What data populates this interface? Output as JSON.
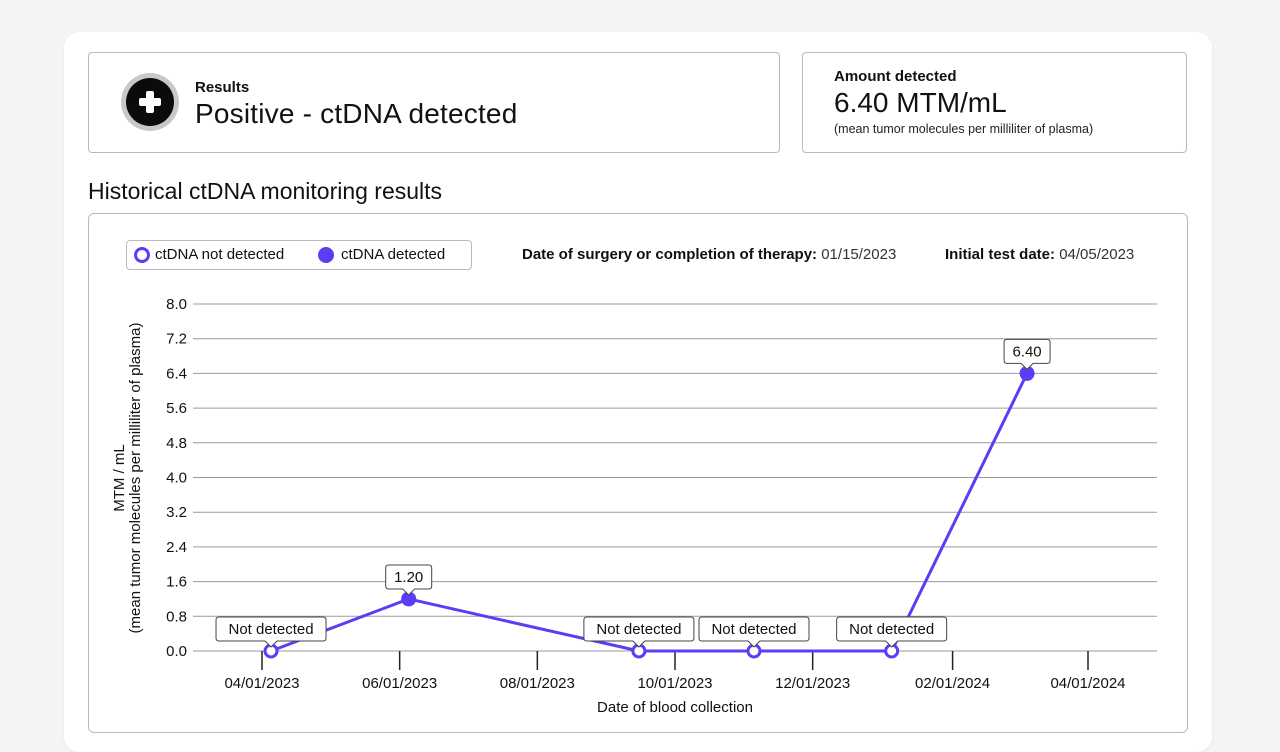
{
  "results": {
    "label": "Results",
    "value": "Positive - ctDNA detected",
    "icon": "plus-circle-icon"
  },
  "amount": {
    "label": "Amount detected",
    "value": "6.40 MTM/mL",
    "description": "(mean tumor molecules per milliliter of plasma)"
  },
  "history": {
    "title": "Historical ctDNA monitoring results"
  },
  "legend": {
    "not_detected": "ctDNA not detected",
    "detected": "ctDNA detected"
  },
  "meta": {
    "surgery_label": "Date of surgery or completion of therapy:",
    "surgery_value": "01/15/2023",
    "initial_label": "Initial test date:",
    "initial_value": "04/05/2023"
  },
  "colors": {
    "accent": "#5b3df5",
    "grid": "#9a9aa0",
    "text": "#111111"
  },
  "chart_data": {
    "type": "line",
    "xlabel": "Date of blood collection",
    "ylabel": "MTM / mL",
    "ylabel_sub": "(mean tumor molecules per milliliter of plasma)",
    "ylim": [
      0,
      8.0
    ],
    "yticks": [
      "8.0",
      "7.2",
      "6.4",
      "5.6",
      "4.8",
      "4.0",
      "3.2",
      "2.4",
      "1.6",
      "0.8",
      "0.0"
    ],
    "xticks": [
      "04/01/2023",
      "06/01/2023",
      "08/01/2023",
      "10/01/2023",
      "12/01/2023",
      "02/01/2024",
      "04/01/2024"
    ],
    "grid": true,
    "legend_position": "top-left",
    "series": [
      {
        "points": [
          {
            "x": "04/05/2023",
            "y": 0.0,
            "detected": false,
            "label": "Not detected"
          },
          {
            "x": "06/05/2023",
            "y": 1.2,
            "detected": true,
            "label": "1.20"
          },
          {
            "x": "09/15/2023",
            "y": 0.0,
            "detected": false,
            "label": "Not detected"
          },
          {
            "x": "11/05/2023",
            "y": 0.0,
            "detected": false,
            "label": "Not detected"
          },
          {
            "x": "01/05/2024",
            "y": 0.0,
            "detected": false,
            "label": "Not detected"
          },
          {
            "x": "03/05/2024",
            "y": 6.4,
            "detected": true,
            "label": "6.40"
          }
        ]
      }
    ]
  }
}
